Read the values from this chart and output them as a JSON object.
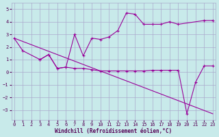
{
  "xlabel": "Windchill (Refroidissement éolien,°C)",
  "background_color": "#c8eaea",
  "grid_color": "#aaaacc",
  "line_color": "#990099",
  "ylim": [
    -3.8,
    5.5
  ],
  "xlim": [
    -0.3,
    23.3
  ],
  "yticks": [
    -3,
    -2,
    -1,
    0,
    1,
    2,
    3,
    4,
    5
  ],
  "xticks": [
    0,
    1,
    2,
    3,
    4,
    5,
    6,
    7,
    8,
    9,
    10,
    11,
    12,
    13,
    14,
    15,
    16,
    17,
    18,
    19,
    20,
    21,
    22,
    23
  ],
  "line1_x": [
    0,
    1,
    3,
    4,
    5,
    6,
    7,
    8,
    9,
    10,
    11,
    12,
    13,
    14,
    15,
    16,
    17,
    18,
    19,
    22,
    23
  ],
  "line1_y": [
    2.7,
    1.7,
    1.0,
    1.4,
    0.3,
    0.4,
    3.0,
    1.3,
    2.7,
    2.6,
    2.8,
    3.3,
    4.7,
    4.6,
    3.8,
    3.8,
    3.8,
    4.0,
    3.8,
    4.1,
    4.1
  ],
  "line2_x": [
    3,
    4,
    5,
    6,
    7,
    8,
    9,
    10,
    11,
    12,
    13,
    14,
    15,
    16,
    17,
    18,
    19,
    20,
    21,
    22,
    23
  ],
  "line2_y": [
    1.0,
    1.4,
    0.3,
    0.4,
    0.3,
    0.3,
    0.2,
    0.1,
    0.1,
    0.1,
    0.1,
    0.1,
    0.1,
    0.15,
    0.15,
    0.15,
    0.15,
    -3.3,
    -0.8,
    0.5,
    0.5
  ],
  "line3_x": [
    0,
    23
  ],
  "line3_y": [
    2.7,
    -3.3
  ]
}
